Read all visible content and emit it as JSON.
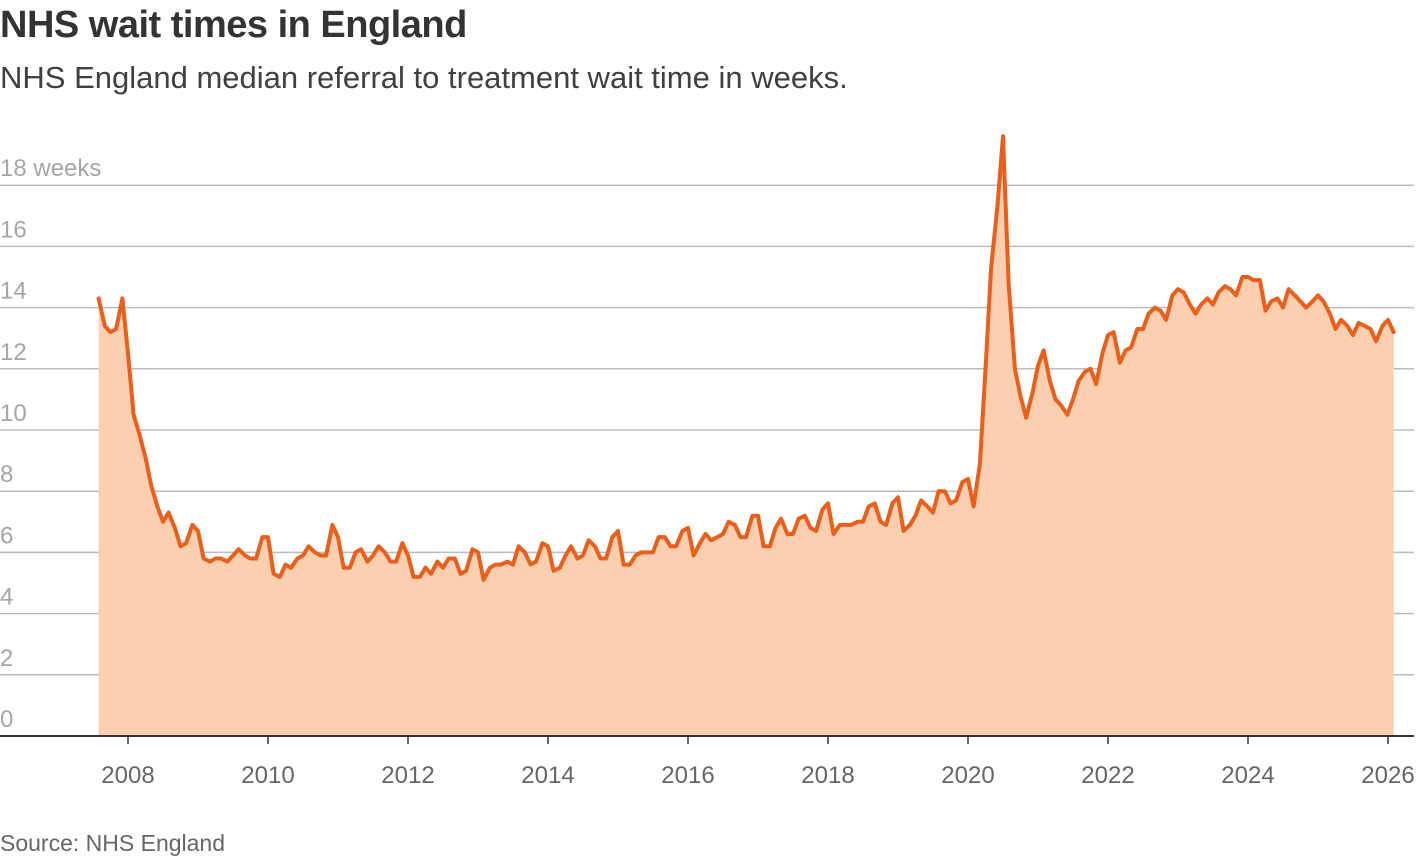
{
  "header": {
    "title": "NHS wait times in England",
    "subtitle": "NHS England median referral to treatment wait time in weeks."
  },
  "footer": {
    "source": "Source: NHS England"
  },
  "colors": {
    "line": "#e8601c",
    "area": "#fccfb0",
    "grid": "#bdbdbd",
    "axis": "#333333"
  },
  "chart_data": {
    "type": "area",
    "title": "NHS wait times in England",
    "subtitle": "NHS England median referral to treatment wait time in weeks.",
    "xlabel": "",
    "ylabel": "",
    "xlim": [
      2007.5,
      2026.3
    ],
    "ylim": [
      0,
      18
    ],
    "grid": true,
    "x_ticks": [
      "2008",
      "2010",
      "2012",
      "2014",
      "2016",
      "2018",
      "2020",
      "2022",
      "2024",
      "2026"
    ],
    "y_ticks": [
      "0",
      "2",
      "4",
      "6",
      "8",
      "10",
      "12",
      "14",
      "16",
      "18 weeks"
    ],
    "series": [
      {
        "x": [
          2007.58,
          2007.67,
          2007.75,
          2007.83,
          2007.92,
          2008.0,
          2008.08,
          2008.17,
          2008.25,
          2008.33,
          2008.42,
          2008.5,
          2008.58,
          2008.67,
          2008.75,
          2008.83,
          2008.92,
          2009.0,
          2009.08,
          2009.17,
          2009.25,
          2009.33,
          2009.42,
          2009.5,
          2009.58,
          2009.67,
          2009.75,
          2009.83,
          2009.92,
          2010.0,
          2010.08,
          2010.17,
          2010.25,
          2010.33,
          2010.42,
          2010.5,
          2010.58,
          2010.67,
          2010.75,
          2010.83,
          2010.92,
          2011.0,
          2011.08,
          2011.17,
          2011.25,
          2011.33,
          2011.42,
          2011.5,
          2011.58,
          2011.67,
          2011.75,
          2011.83,
          2011.92,
          2012.0,
          2012.08,
          2012.17,
          2012.25,
          2012.33,
          2012.42,
          2012.5,
          2012.58,
          2012.67,
          2012.75,
          2012.83,
          2012.92,
          2013.0,
          2013.08,
          2013.17,
          2013.25,
          2013.33,
          2013.42,
          2013.5,
          2013.58,
          2013.67,
          2013.75,
          2013.83,
          2013.92,
          2014.0,
          2014.08,
          2014.17,
          2014.25,
          2014.33,
          2014.42,
          2014.5,
          2014.58,
          2014.67,
          2014.75,
          2014.83,
          2014.92,
          2015.0,
          2015.08,
          2015.17,
          2015.25,
          2015.33,
          2015.42,
          2015.5,
          2015.58,
          2015.67,
          2015.75,
          2015.83,
          2015.92,
          2016.0,
          2016.08,
          2016.17,
          2016.25,
          2016.33,
          2016.42,
          2016.5,
          2016.58,
          2016.67,
          2016.75,
          2016.83,
          2016.92,
          2017.0,
          2017.08,
          2017.17,
          2017.25,
          2017.33,
          2017.42,
          2017.5,
          2017.58,
          2017.67,
          2017.75,
          2017.83,
          2017.92,
          2018.0,
          2018.08,
          2018.17,
          2018.25,
          2018.33,
          2018.42,
          2018.5,
          2018.58,
          2018.67,
          2018.75,
          2018.83,
          2018.92,
          2019.0,
          2019.08,
          2019.17,
          2019.25,
          2019.33,
          2019.42,
          2019.5,
          2019.58,
          2019.67,
          2019.75,
          2019.83,
          2019.92,
          2020.0,
          2020.08,
          2020.17,
          2020.25,
          2020.33,
          2020.42,
          2020.5,
          2020.58,
          2020.67,
          2020.75,
          2020.83,
          2020.92,
          2021.0,
          2021.08,
          2021.17,
          2021.25,
          2021.33,
          2021.42,
          2021.5,
          2021.58,
          2021.67,
          2021.75,
          2021.83,
          2021.92,
          2022.0,
          2022.08,
          2022.17,
          2022.25,
          2022.33,
          2022.42,
          2022.5,
          2022.58,
          2022.67,
          2022.75,
          2022.83,
          2022.92,
          2023.0,
          2023.08,
          2023.17,
          2023.25,
          2023.33,
          2023.42,
          2023.5,
          2023.58,
          2023.67,
          2023.75,
          2023.83,
          2023.92,
          2024.0,
          2024.08,
          2024.17,
          2024.25,
          2024.33,
          2024.42,
          2024.5,
          2024.58,
          2024.67,
          2024.75,
          2024.83,
          2024.92,
          2025.0,
          2025.08,
          2025.17,
          2025.25,
          2025.33,
          2025.42,
          2025.5,
          2025.58,
          2025.67,
          2025.75,
          2025.83,
          2025.92,
          2026.0,
          2026.08
        ],
        "values": [
          14.3,
          13.4,
          13.2,
          13.3,
          14.3,
          12.5,
          10.5,
          9.8,
          9.1,
          8.2,
          7.5,
          7.0,
          7.3,
          6.8,
          6.2,
          6.3,
          6.9,
          6.7,
          5.8,
          5.7,
          5.8,
          5.8,
          5.7,
          5.9,
          6.1,
          5.9,
          5.8,
          5.8,
          6.5,
          6.5,
          5.3,
          5.2,
          5.6,
          5.5,
          5.8,
          5.9,
          6.2,
          6.0,
          5.9,
          5.9,
          6.9,
          6.5,
          5.5,
          5.5,
          6.0,
          6.1,
          5.7,
          5.9,
          6.2,
          6.0,
          5.7,
          5.7,
          6.3,
          5.9,
          5.2,
          5.2,
          5.5,
          5.3,
          5.7,
          5.5,
          5.8,
          5.8,
          5.3,
          5.4,
          6.1,
          6.0,
          5.1,
          5.5,
          5.6,
          5.6,
          5.7,
          5.6,
          6.2,
          6.0,
          5.6,
          5.7,
          6.3,
          6.2,
          5.4,
          5.5,
          5.9,
          6.2,
          5.8,
          5.9,
          6.4,
          6.2,
          5.8,
          5.8,
          6.5,
          6.7,
          5.6,
          5.6,
          5.9,
          6.0,
          6.0,
          6.0,
          6.5,
          6.5,
          6.2,
          6.2,
          6.7,
          6.8,
          5.9,
          6.3,
          6.6,
          6.4,
          6.5,
          6.6,
          7.0,
          6.9,
          6.5,
          6.5,
          7.2,
          7.2,
          6.2,
          6.2,
          6.8,
          7.1,
          6.6,
          6.6,
          7.1,
          7.2,
          6.8,
          6.7,
          7.4,
          7.6,
          6.6,
          6.9,
          6.9,
          6.9,
          7.0,
          7.0,
          7.5,
          7.6,
          7.0,
          6.9,
          7.6,
          7.8,
          6.7,
          6.9,
          7.2,
          7.7,
          7.5,
          7.3,
          8.0,
          8.0,
          7.6,
          7.7,
          8.3,
          8.4,
          7.5,
          8.9,
          12.0,
          15.3,
          17.3,
          19.6,
          14.8,
          12.0,
          11.1,
          10.4,
          11.2,
          12.1,
          12.6,
          11.6,
          11.0,
          10.8,
          10.5,
          11.0,
          11.6,
          11.9,
          12.0,
          11.5,
          12.5,
          13.1,
          13.2,
          12.2,
          12.6,
          12.7,
          13.3,
          13.3,
          13.8,
          14.0,
          13.9,
          13.6,
          14.4,
          14.6,
          14.5,
          14.1,
          13.8,
          14.1,
          14.3,
          14.1,
          14.5,
          14.7,
          14.6,
          14.4,
          15.0,
          15.0,
          14.9,
          14.9,
          13.9,
          14.2,
          14.3,
          14.0,
          14.6,
          14.4,
          14.2,
          14.0,
          14.2,
          14.4,
          14.2,
          13.8,
          13.3,
          13.6,
          13.4,
          13.1,
          13.5,
          13.4,
          13.3,
          12.9,
          13.4,
          13.6,
          13.2
        ]
      }
    ]
  }
}
